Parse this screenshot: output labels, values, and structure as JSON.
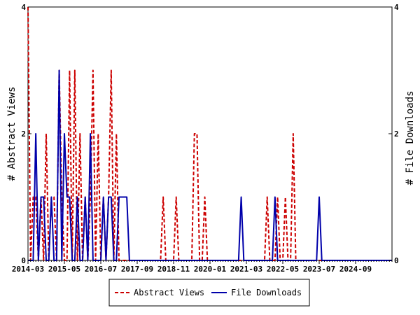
{
  "chart_data": {
    "type": "line",
    "ylabel_left": "# Abstract Views",
    "ylabel_right": "# File Downloads",
    "ylim_left": [
      0,
      4
    ],
    "ylim_right": [
      0,
      4
    ],
    "yticks_left": [
      "0",
      "2",
      "4"
    ],
    "yticks_right": [
      "0",
      "2",
      "4"
    ],
    "xlim": [
      "2014-03",
      "2025-11"
    ],
    "x_tick_labels": [
      "2014-03",
      "2015-05",
      "2016-07",
      "2017-09",
      "2018-11",
      "2020-01",
      "2021-03",
      "2022-05",
      "2023-07",
      "2024-09"
    ],
    "grid": false,
    "legend_position": "bottom-center",
    "series": [
      {
        "name": "Abstract Views",
        "axis": "left",
        "color": "#cc0000",
        "style": "dashed",
        "x": [
          "2014-03",
          "2014-04",
          "2014-05",
          "2014-06",
          "2014-07",
          "2014-08",
          "2014-09",
          "2014-10",
          "2014-11",
          "2014-12",
          "2015-01",
          "2015-02",
          "2015-03",
          "2015-04",
          "2015-05",
          "2015-06",
          "2015-07",
          "2015-08",
          "2015-09",
          "2015-10",
          "2015-11",
          "2015-12",
          "2016-01",
          "2016-02",
          "2016-03",
          "2016-04",
          "2016-05",
          "2016-06",
          "2016-07",
          "2016-08",
          "2016-09",
          "2016-10",
          "2016-11",
          "2016-12",
          "2017-01",
          "2017-02",
          "2017-03",
          "2017-04",
          "2017-05",
          "2017-06",
          "2017-07",
          "2017-08",
          "2017-09",
          "2017-10",
          "2017-11",
          "2017-12",
          "2018-01",
          "2018-02",
          "2018-03",
          "2018-04",
          "2018-05",
          "2018-06",
          "2018-07",
          "2018-08",
          "2018-09",
          "2018-10",
          "2018-11",
          "2018-12",
          "2019-01",
          "2019-02",
          "2019-03",
          "2019-04",
          "2019-05",
          "2019-06",
          "2019-07",
          "2019-08",
          "2019-09",
          "2019-10",
          "2019-11",
          "2019-12",
          "2020-01",
          "2020-02",
          "2020-03",
          "2020-04",
          "2020-05",
          "2020-06",
          "2020-07",
          "2020-08",
          "2020-09",
          "2020-10",
          "2020-11",
          "2020-12",
          "2021-01",
          "2021-02",
          "2021-03",
          "2021-04",
          "2021-05",
          "2021-06",
          "2021-07",
          "2021-08",
          "2021-09",
          "2021-10",
          "2021-11",
          "2021-12",
          "2022-01",
          "2022-02",
          "2022-03",
          "2022-04",
          "2022-05",
          "2022-06",
          "2022-07",
          "2022-08",
          "2022-09",
          "2022-10",
          "2022-11",
          "2022-12",
          "2023-01",
          "2023-02",
          "2023-03",
          "2023-04",
          "2023-05",
          "2023-06",
          "2023-07",
          "2023-08",
          "2023-09",
          "2023-10",
          "2023-11",
          "2023-12",
          "2024-01",
          "2024-02",
          "2024-03",
          "2024-04",
          "2024-05",
          "2024-06",
          "2024-07",
          "2024-08",
          "2024-09",
          "2024-10",
          "2024-11",
          "2024-12",
          "2025-01",
          "2025-02",
          "2025-03",
          "2025-04",
          "2025-05",
          "2025-06",
          "2025-07",
          "2025-08",
          "2025-09",
          "2025-10",
          "2025-11"
        ],
        "values": [
          4,
          0,
          1,
          1,
          0,
          1,
          0,
          2,
          0,
          1,
          1,
          0,
          3,
          1,
          0,
          0,
          3,
          0,
          3,
          0,
          2,
          0,
          1,
          0,
          1,
          3,
          0,
          2,
          0,
          1,
          0,
          1,
          3,
          0,
          2,
          0,
          0,
          0,
          0,
          0,
          0,
          0,
          0,
          0,
          0,
          0,
          0,
          0,
          0,
          0,
          0,
          0,
          1,
          0,
          0,
          0,
          0,
          1,
          0,
          0,
          0,
          0,
          0,
          0,
          2,
          2,
          0,
          0,
          1,
          0,
          0,
          0,
          0,
          0,
          0,
          0,
          0,
          0,
          0,
          0,
          0,
          0,
          0,
          0,
          0,
          0,
          0,
          0,
          0,
          0,
          0,
          0,
          1,
          0,
          0,
          0,
          1,
          0,
          0,
          1,
          0,
          0,
          2,
          0,
          0,
          0,
          0,
          0,
          0,
          0,
          0,
          0,
          0,
          0,
          0,
          0,
          0,
          0,
          0,
          0,
          0,
          0,
          0,
          0,
          0,
          0,
          0,
          0,
          0,
          0,
          0,
          0,
          0,
          0,
          0,
          0,
          0,
          0,
          0,
          0,
          0
        ]
      },
      {
        "name": "File Downloads",
        "axis": "right",
        "color": "#0000aa",
        "style": "solid",
        "x": [
          "2014-03",
          "2014-04",
          "2014-05",
          "2014-06",
          "2014-07",
          "2014-08",
          "2014-09",
          "2014-10",
          "2014-11",
          "2014-12",
          "2015-01",
          "2015-02",
          "2015-03",
          "2015-04",
          "2015-05",
          "2015-06",
          "2015-07",
          "2015-08",
          "2015-09",
          "2015-10",
          "2015-11",
          "2015-12",
          "2016-01",
          "2016-02",
          "2016-03",
          "2016-04",
          "2016-05",
          "2016-06",
          "2016-07",
          "2016-08",
          "2016-09",
          "2016-10",
          "2016-11",
          "2016-12",
          "2017-01",
          "2017-02",
          "2017-03",
          "2017-04",
          "2017-05",
          "2017-06",
          "2017-07",
          "2017-08",
          "2017-09",
          "2017-10",
          "2017-11",
          "2017-12",
          "2018-01",
          "2018-02",
          "2018-03",
          "2018-04",
          "2018-05",
          "2018-06",
          "2018-07",
          "2018-08",
          "2018-09",
          "2018-10",
          "2018-11",
          "2018-12",
          "2019-01",
          "2019-02",
          "2019-03",
          "2019-04",
          "2019-05",
          "2019-06",
          "2019-07",
          "2019-08",
          "2019-09",
          "2019-10",
          "2019-11",
          "2019-12",
          "2020-01",
          "2020-02",
          "2020-03",
          "2020-04",
          "2020-05",
          "2020-06",
          "2020-07",
          "2020-08",
          "2020-09",
          "2020-10",
          "2020-11",
          "2020-12",
          "2021-01",
          "2021-02",
          "2021-03",
          "2021-04",
          "2021-05",
          "2021-06",
          "2021-07",
          "2021-08",
          "2021-09",
          "2021-10",
          "2021-11",
          "2021-12",
          "2022-01",
          "2022-02",
          "2022-03",
          "2022-04",
          "2022-05",
          "2022-06",
          "2022-07",
          "2022-08",
          "2022-09",
          "2022-10",
          "2022-11",
          "2022-12",
          "2023-01",
          "2023-02",
          "2023-03",
          "2023-04",
          "2023-05",
          "2023-06",
          "2023-07",
          "2023-08",
          "2023-09",
          "2023-10",
          "2023-11",
          "2023-12",
          "2024-01",
          "2024-02",
          "2024-03",
          "2024-04",
          "2024-05",
          "2024-06",
          "2024-07",
          "2024-08",
          "2024-09",
          "2024-10",
          "2024-11",
          "2024-12",
          "2025-01",
          "2025-02",
          "2025-03",
          "2025-04",
          "2025-05",
          "2025-06",
          "2025-07",
          "2025-08",
          "2025-09",
          "2025-10",
          "2025-11"
        ],
        "values": [
          0,
          0,
          0,
          2,
          0,
          1,
          1,
          0,
          0,
          1,
          0,
          0,
          3,
          0,
          2,
          1,
          1,
          0,
          0,
          1,
          0,
          0,
          1,
          0,
          2,
          0,
          0,
          0,
          0,
          1,
          0,
          1,
          1,
          0,
          0,
          1,
          1,
          1,
          1,
          0,
          0,
          0,
          0,
          0,
          0,
          0,
          0,
          0,
          0,
          0,
          0,
          0,
          0,
          0,
          0,
          0,
          0,
          0,
          0,
          0,
          0,
          0,
          0,
          0,
          0,
          0,
          0,
          0,
          0,
          0,
          0,
          0,
          0,
          0,
          0,
          0,
          0,
          0,
          0,
          0,
          0,
          0,
          1,
          0,
          0,
          0,
          0,
          0,
          0,
          0,
          0,
          0,
          0,
          0,
          0,
          1,
          0,
          0,
          0,
          0,
          0,
          0,
          0,
          0,
          0,
          0,
          0,
          0,
          0,
          0,
          0,
          0,
          1,
          0,
          0,
          0,
          0,
          0,
          0,
          0,
          0,
          0,
          0,
          0,
          0,
          0,
          0,
          0,
          0,
          0,
          0,
          0,
          0,
          0,
          0,
          0,
          0,
          0,
          0,
          0,
          0
        ]
      }
    ]
  }
}
